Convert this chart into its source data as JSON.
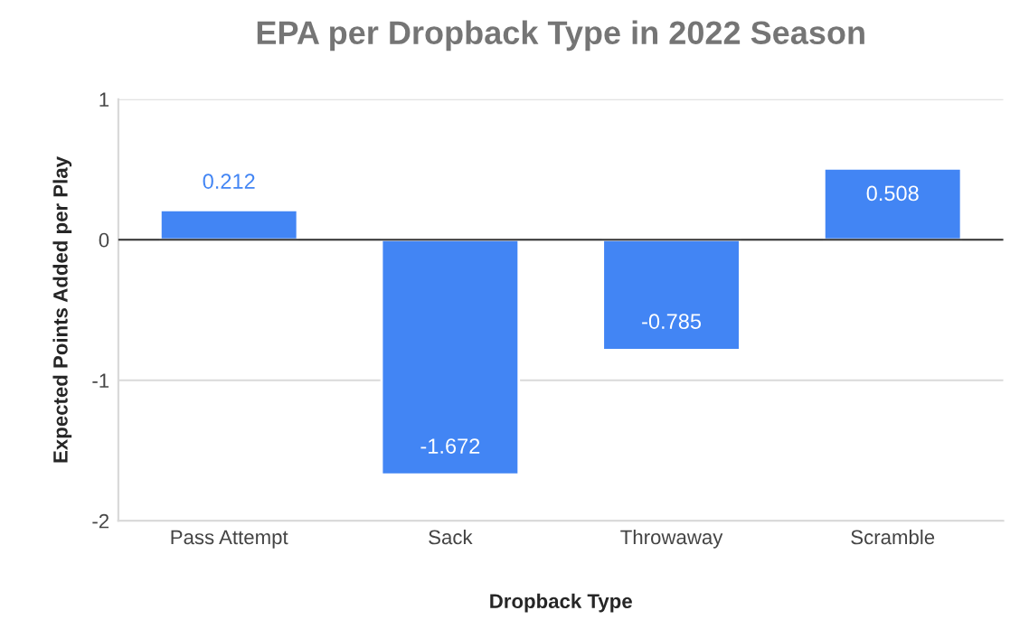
{
  "chart_data": {
    "type": "bar",
    "title": "EPA per Dropback Type in 2022 Season",
    "xlabel": "Dropback Type",
    "ylabel": "Expected Points Added per Play",
    "categories": [
      "Pass Attempt",
      "Sack",
      "Throwaway",
      "Scramble"
    ],
    "values": [
      0.212,
      -1.672,
      -0.785,
      0.508
    ],
    "color": "#4285f4",
    "ylim": [
      -2,
      1
    ],
    "yticks": [
      -2,
      -1,
      0,
      1
    ],
    "grid": "y",
    "data_labels": true
  }
}
